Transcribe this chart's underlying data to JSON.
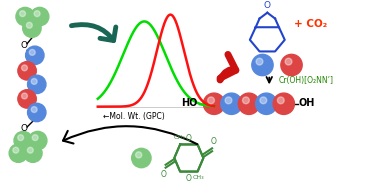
{
  "bg_color": "#ffffff",
  "green_sphere": "#7dc87d",
  "blue_sphere": "#5588dd",
  "red_sphere": "#dd4444",
  "dark_teal": "#1a6655",
  "red_arrow": "#cc1111",
  "gpc_green": "#00dd00",
  "gpc_red": "#ff1111",
  "cyclohexene_blue": "#2244cc",
  "label_co2_color": "#ff3300",
  "label_cr_color": "#228800",
  "black": "#000000",
  "text_mol_wt": "←Mol. Wt. (GPC)",
  "text_co2": "+ CO₂",
  "text_cr": "Cr(OH)[O₂NN’]",
  "text_ho": "HO",
  "text_oh": "OH"
}
